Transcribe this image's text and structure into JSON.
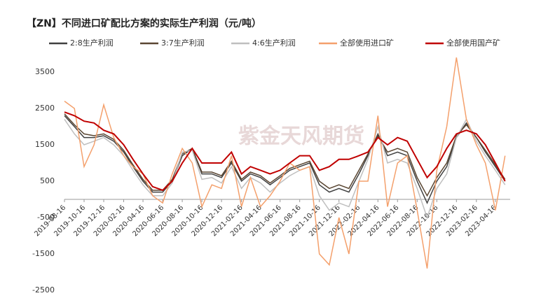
{
  "chart_data": {
    "type": "line",
    "title": "【ZN】不同进口矿配比方案的实际生产利润（元/吨）",
    "watermark": "紫金天风期货",
    "x": [
      "2019-08-16",
      "2019-09-16",
      "2019-10-16",
      "2019-11-16",
      "2019-12-16",
      "2020-01-16",
      "2020-02-16",
      "2020-03-16",
      "2020-04-16",
      "2020-05-16",
      "2020-06-16",
      "2020-07-16",
      "2020-08-16",
      "2020-09-16",
      "2020-10-16",
      "2020-11-16",
      "2020-12-16",
      "2021-01-16",
      "2021-02-16",
      "2021-03-16",
      "2021-04-16",
      "2021-05-16",
      "2021-06-16",
      "2021-07-16",
      "2021-08-16",
      "2021-09-16",
      "2021-10-16",
      "2021-11-16",
      "2021-12-16",
      "2022-01-16",
      "2022-02-16",
      "2022-03-16",
      "2022-04-16",
      "2022-05-16",
      "2022-06-16",
      "2022-07-16",
      "2022-08-16",
      "2022-09-16",
      "2022-10-16",
      "2022-11-16",
      "2022-12-16",
      "2023-01-16",
      "2023-02-16",
      "2023-03-16",
      "2023-04-16",
      "2023-05-16"
    ],
    "xlim": [
      "2019-08-16",
      "2023-06-01"
    ],
    "xticks": [
      "2019-08-16",
      "2019-10-16",
      "2019-12-16",
      "2020-02-16",
      "2020-04-16",
      "2020-06-16",
      "2020-08-16",
      "2020-10-16",
      "2020-12-16",
      "2021-02-16",
      "2021-04-16",
      "2021-06-16",
      "2021-08-16",
      "2021-10-16",
      "2021-12-16",
      "2022-02-16",
      "2022-04-16",
      "2022-06-16",
      "2022-08-16",
      "2022-10-16",
      "2022-12-16",
      "2023-02-16",
      "2023-04-16"
    ],
    "ylim": [
      -2500,
      4000
    ],
    "yticks": [
      -2500,
      -1500,
      -500,
      500,
      1500,
      2500,
      3500
    ],
    "series": [
      {
        "name": "2:8生产利润",
        "color": "#404040",
        "values": [
          2300,
          2000,
          1700,
          1700,
          1750,
          1600,
          1300,
          900,
          500,
          200,
          200,
          500,
          1200,
          1400,
          700,
          700,
          600,
          1000,
          500,
          700,
          600,
          400,
          600,
          800,
          900,
          1000,
          400,
          200,
          300,
          200,
          700,
          1200,
          1800,
          1200,
          1300,
          1200,
          500,
          -100,
          500,
          900,
          1700,
          2100,
          1700,
          1300,
          900,
          500
        ]
      },
      {
        "name": "3:7生产利润",
        "color": "#5a4632",
        "values": [
          2350,
          2050,
          1800,
          1750,
          1800,
          1650,
          1350,
          950,
          550,
          250,
          250,
          550,
          1250,
          1400,
          750,
          750,
          650,
          1050,
          550,
          750,
          650,
          450,
          650,
          850,
          950,
          1050,
          500,
          300,
          400,
          300,
          800,
          1250,
          1750,
          1300,
          1400,
          1300,
          600,
          100,
          600,
          1000,
          1750,
          2050,
          1700,
          1350,
          950,
          550
        ]
      },
      {
        "name": "4:6生产利润",
        "color": "#bfbfbf",
        "values": [
          2200,
          1800,
          1500,
          1600,
          1700,
          1500,
          1200,
          800,
          400,
          100,
          100,
          450,
          1300,
          1350,
          550,
          600,
          450,
          900,
          300,
          600,
          450,
          200,
          450,
          650,
          800,
          900,
          100,
          -300,
          -100,
          -200,
          500,
          1100,
          2000,
          1000,
          1100,
          1000,
          300,
          -500,
          300,
          700,
          1700,
          2200,
          1600,
          1200,
          800,
          400
        ]
      },
      {
        "name": "全部使用进口矿",
        "color": "#f4a06c",
        "values": [
          2700,
          2500,
          900,
          1500,
          2600,
          1700,
          1200,
          900,
          700,
          100,
          -100,
          700,
          1400,
          1000,
          -200,
          400,
          300,
          1200,
          -200,
          600,
          -200,
          100,
          500,
          1000,
          800,
          900,
          -1500,
          -1800,
          -500,
          -1500,
          500,
          500,
          2300,
          -200,
          1000,
          1200,
          -300,
          -1900,
          800,
          2000,
          3900,
          2200,
          1500,
          1000,
          -300,
          1200
        ]
      },
      {
        "name": "全部使用国产矿",
        "color": "#c00000",
        "values": [
          2400,
          2300,
          2150,
          2100,
          1900,
          1800,
          1500,
          1100,
          700,
          350,
          250,
          500,
          1000,
          1400,
          1000,
          1000,
          1000,
          1300,
          700,
          900,
          800,
          700,
          800,
          1000,
          1200,
          1200,
          800,
          900,
          1100,
          1100,
          1200,
          1300,
          1700,
          1500,
          1700,
          1600,
          1100,
          600,
          900,
          1400,
          1800,
          1900,
          1800,
          1500,
          1000,
          500
        ]
      }
    ]
  }
}
